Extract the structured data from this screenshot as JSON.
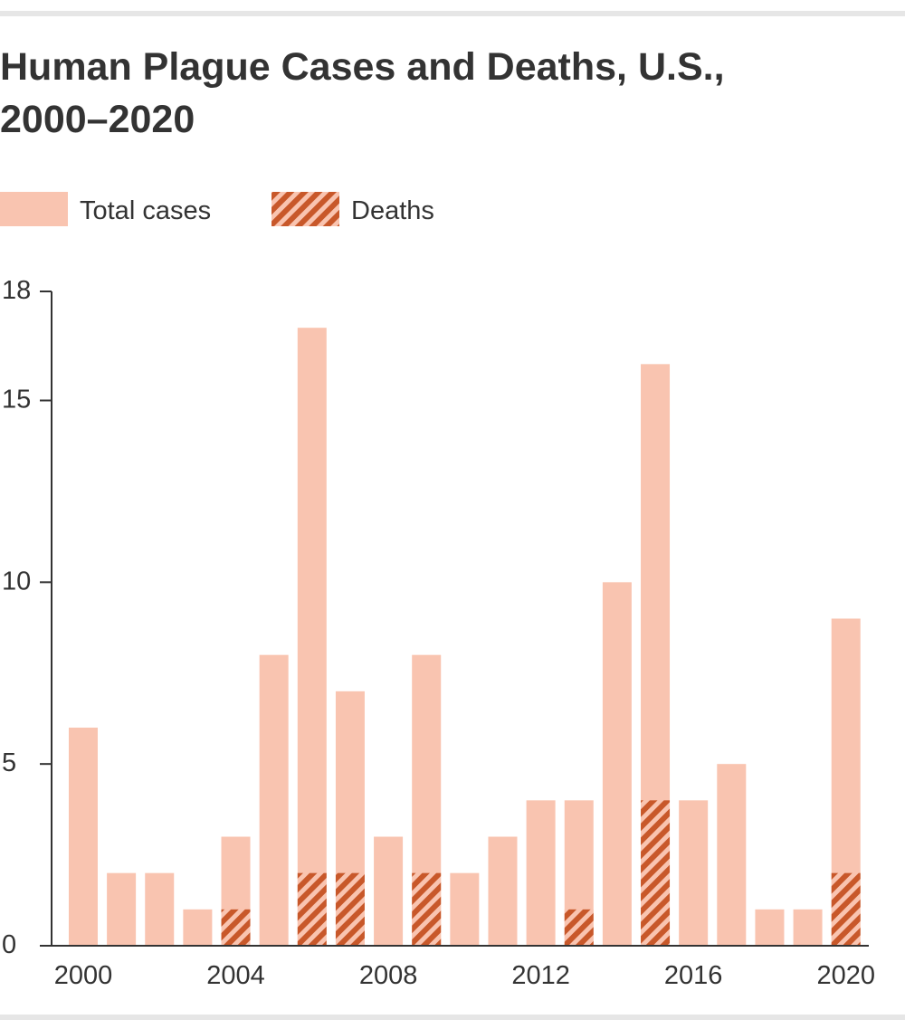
{
  "chart_data": {
    "type": "bar",
    "title": [
      "Human Plague Cases and Deaths, U.S.,",
      "2000–2020"
    ],
    "x": [
      2000,
      2001,
      2002,
      2003,
      2004,
      2005,
      2006,
      2007,
      2008,
      2009,
      2010,
      2011,
      2012,
      2013,
      2014,
      2015,
      2016,
      2017,
      2018,
      2019,
      2020
    ],
    "series": [
      {
        "name": "Total cases",
        "color": "#f9c4b0",
        "values": [
          6,
          2,
          2,
          1,
          3,
          8,
          17,
          7,
          3,
          8,
          2,
          3,
          4,
          4,
          10,
          16,
          4,
          5,
          1,
          1,
          9
        ]
      },
      {
        "name": "Deaths",
        "color": "#c8582a",
        "values": [
          0,
          0,
          0,
          0,
          1,
          0,
          2,
          2,
          0,
          2,
          0,
          0,
          0,
          1,
          0,
          4,
          0,
          0,
          0,
          0,
          2
        ]
      }
    ],
    "xlim": [
      1999.17,
      2020.6
    ],
    "xticks": [
      2000,
      2004,
      2008,
      2012,
      2016,
      2020
    ],
    "ylim": [
      0,
      18
    ],
    "yticks": [
      0,
      5,
      10,
      15,
      18
    ]
  }
}
